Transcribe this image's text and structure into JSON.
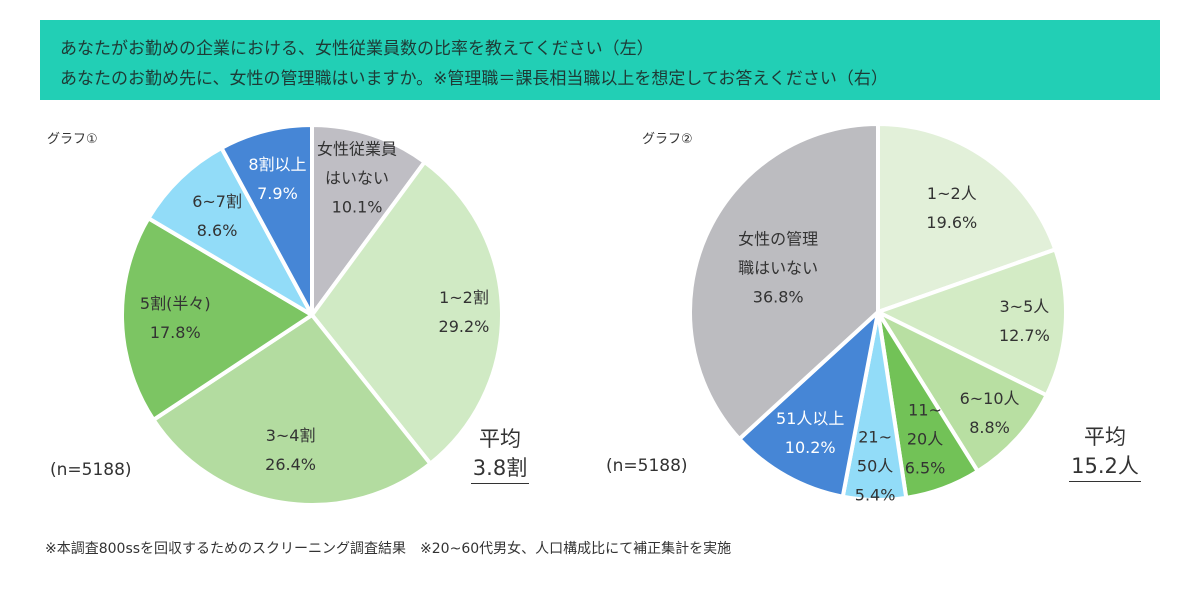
{
  "header": {
    "line1": "あなたがお勤めの企業における、女性従業員数の比率を教えてください（左）",
    "line2": "あなたのお勤め先に、女性の管理職はいますか。※管理職＝課長相当職以上を想定してお答えください（右）",
    "color": "#22cfb5"
  },
  "footnote": "※本調査800ssを回収するためのスクリーニング調査結果　※20~60代男女、人口構成比にて補正集計を実施",
  "chart_data": [
    {
      "type": "pie",
      "title": "グラフ①",
      "n_label": "(n=5188)",
      "average_label": "平均",
      "average_value": "3.8割",
      "start": "top",
      "direction": "clockwise",
      "slices": [
        {
          "label": "女性従業員\nはいない",
          "value": 10.1,
          "display": "10.1%",
          "color": "#bfbec4"
        },
        {
          "label": "1~2割",
          "value": 29.2,
          "display": "29.2%",
          "color": "#d0eac4"
        },
        {
          "label": "3~4割",
          "value": 26.4,
          "display": "26.4%",
          "color": "#b3dca0"
        },
        {
          "label": "5割(半々)",
          "value": 17.8,
          "display": "17.8%",
          "color": "#7cc563"
        },
        {
          "label": "6~7割",
          "value": 8.6,
          "display": "8.6%",
          "color": "#92dcf8"
        },
        {
          "label": "8割以上",
          "value": 7.9,
          "display": "7.9%",
          "color": "#4686d6"
        }
      ]
    },
    {
      "type": "pie",
      "title": "グラフ②",
      "n_label": "(n=5188)",
      "average_label": "平均",
      "average_value": "15.2人",
      "start": "top",
      "direction": "clockwise",
      "slices": [
        {
          "label": "1~2人",
          "value": 19.6,
          "display": "19.6%",
          "color": "#e2f0d9"
        },
        {
          "label": "3~5人",
          "value": 12.7,
          "display": "12.7%",
          "color": "#d3ebc5"
        },
        {
          "label": "6~10人",
          "value": 8.8,
          "display": "8.8%",
          "color": "#b8dfa2"
        },
        {
          "label": "11~\n20人",
          "value": 6.5,
          "display": "6.5%",
          "color": "#72c257"
        },
        {
          "label": "21~\n50人",
          "value": 5.4,
          "display": "5.4%",
          "color": "#92dcf8"
        },
        {
          "label": "51人以上",
          "value": 10.2,
          "display": "10.2%",
          "color": "#4686d6"
        },
        {
          "label": "女性の管理\n職はいない",
          "value": 36.8,
          "display": "36.8%",
          "color": "#bcbcc0"
        }
      ]
    }
  ]
}
